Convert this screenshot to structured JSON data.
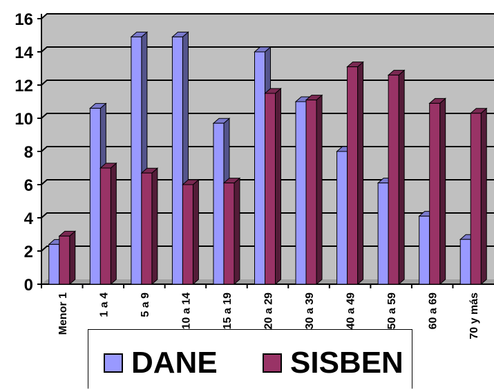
{
  "chart_data": {
    "type": "bar",
    "title": "",
    "xlabel": "",
    "ylabel": "",
    "ylim": [
      0,
      16
    ],
    "yticks": [
      0,
      2,
      4,
      6,
      8,
      10,
      12,
      14,
      16
    ],
    "grid": true,
    "legend_position": "bottom",
    "categories": [
      "Menor 1",
      "1 a 4",
      "5 a 9",
      "10 a 14",
      "15 a 19",
      "20 a 29",
      "30 a 39",
      "40 a 49",
      "50 a 59",
      "60 a 69",
      "70 y más"
    ],
    "series": [
      {
        "name": "DANE",
        "color": "#9999ff",
        "values": [
          2.4,
          10.6,
          14.9,
          14.9,
          9.7,
          14.0,
          11.0,
          8.0,
          6.1,
          4.1,
          2.7
        ]
      },
      {
        "name": "SISBEN",
        "color": "#993366",
        "values": [
          2.9,
          7.0,
          6.7,
          6.0,
          6.1,
          11.5,
          11.1,
          13.1,
          12.6,
          10.9,
          10.3
        ]
      }
    ]
  },
  "legend": {
    "items": [
      "DANE",
      "SISBEN"
    ]
  }
}
